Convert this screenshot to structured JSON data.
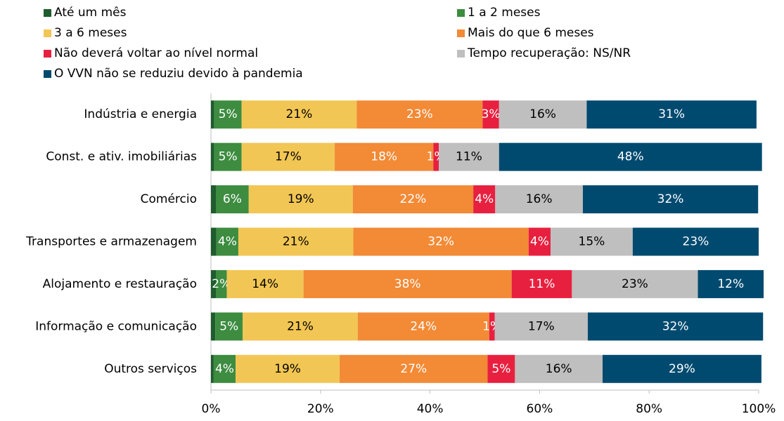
{
  "chart_data": {
    "type": "stacked_barh",
    "categories": [
      "Indústria e energia",
      "Const. e ativ. imobiliárias",
      "Comércio",
      "Transportes e armazenagem",
      "Alojamento e restauração",
      "Informação e comunicação",
      "Outros serviços"
    ],
    "series": [
      {
        "name": "Até um mês",
        "color": "#1f5c2e",
        "values": [
          0.6,
          0.6,
          0.9,
          1.0,
          0.9,
          0.8,
          0.5
        ]
      },
      {
        "name": "1 a 2 meses",
        "color": "#3d8c40",
        "label_color": "#ffffff",
        "values": [
          5,
          5,
          6,
          4,
          2,
          5,
          4
        ],
        "value_labels": [
          "5%",
          "5%",
          "6%",
          "4%",
          "2%",
          "5%",
          "4%"
        ]
      },
      {
        "name": "3 a 6 meses",
        "color": "#f2c654",
        "label_color": "#000000",
        "values": [
          21,
          17,
          19,
          21,
          14,
          21,
          19
        ],
        "value_labels": [
          "21%",
          "17%",
          "19%",
          "21%",
          "14%",
          "21%",
          "19%"
        ]
      },
      {
        "name": "Mais do que 6 meses",
        "color": "#f28a36",
        "label_color": "#ffffff",
        "values": [
          23,
          18,
          22,
          32,
          38,
          24,
          27
        ],
        "value_labels": [
          "23%",
          "18%",
          "22%",
          "32%",
          "38%",
          "24%",
          "27%"
        ]
      },
      {
        "name": "Não deverá voltar ao nível normal",
        "color": "#e8203f",
        "label_color": "#ffffff",
        "values": [
          3,
          1,
          4,
          4,
          11,
          1,
          5
        ],
        "value_labels": [
          "3%",
          "1%",
          "4%",
          "4%",
          "11%",
          "1%",
          "5%"
        ]
      },
      {
        "name": "Tempo recuperação: NS/NR",
        "color": "#bfbfbf",
        "label_color": "#000000",
        "values": [
          16,
          11,
          16,
          15,
          23,
          17,
          16
        ],
        "value_labels": [
          "16%",
          "11%",
          "16%",
          "15%",
          "23%",
          "17%",
          "16%"
        ]
      },
      {
        "name": "O VVN não se reduziu devido à pandemia",
        "color": "#004a70",
        "label_color": "#ffffff",
        "values": [
          31,
          48,
          32,
          23,
          12,
          32,
          29
        ],
        "value_labels": [
          "31%",
          "48%",
          "32%",
          "23%",
          "12%",
          "32%",
          "29%"
        ]
      }
    ],
    "xlim": [
      0,
      100
    ],
    "xticks": [
      {
        "value": 0,
        "label": "0%"
      },
      {
        "value": 20,
        "label": "20%"
      },
      {
        "value": 40,
        "label": "40%"
      },
      {
        "value": 60,
        "label": "60%"
      },
      {
        "value": 80,
        "label": "80%"
      },
      {
        "value": 100,
        "label": "100%"
      }
    ],
    "legend": "top"
  }
}
